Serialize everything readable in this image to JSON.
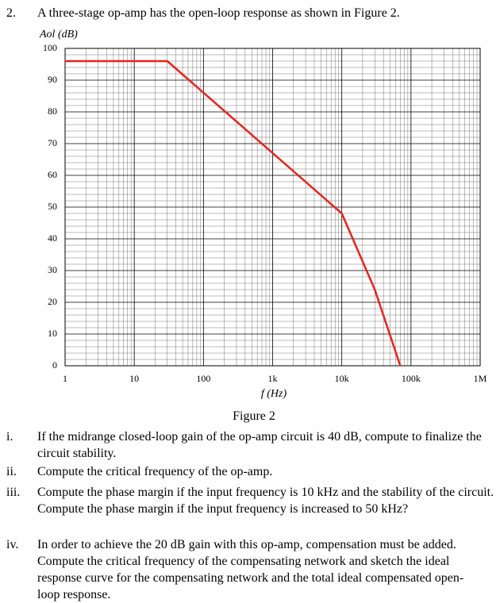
{
  "question": {
    "number": "2.",
    "text": "A three-stage op-amp has the open-loop response as shown in Figure 2."
  },
  "chart_data": {
    "type": "line",
    "ylabel": "Aol (dB)",
    "xlabel": "f (Hz)",
    "x": [
      1,
      30,
      10000,
      30000,
      70000
    ],
    "values": [
      96,
      96,
      48,
      24,
      0
    ],
    "color": "#e8231c",
    "xlog": true,
    "xlim": [
      1,
      1000000
    ],
    "xticks": [
      1,
      10,
      100,
      {
        "value": 1000,
        "label": "1k"
      },
      {
        "value": 10000,
        "label": "10k"
      },
      {
        "value": 100000,
        "label": "100k"
      },
      {
        "value": 1000000,
        "label": "1M"
      }
    ],
    "ylim": [
      0,
      100
    ],
    "yticks": [
      0,
      10,
      20,
      30,
      40,
      50,
      60,
      70,
      80,
      90,
      100
    ],
    "grid": true
  },
  "figure_caption": "Figure 2",
  "items": [
    {
      "label": "i.",
      "text": "If the midrange closed-loop gain of the op-amp circuit is 40 dB, compute to finalize the circuit stability."
    },
    {
      "label": "ii.",
      "text": "Compute the critical frequency of the op-amp."
    },
    {
      "label": "iii.",
      "text": "Compute the phase margin if the input frequency is 10 kHz and the stability of the circuit. Compute the phase margin if the input frequency is increased to 50 kHz?"
    },
    {
      "label": "iv.",
      "text": "In order to achieve the 20 dB gain with this op-amp, compensation must be added. Compute the critical frequency of the compensating network and sketch the ideal response curve for the compensating network and the total ideal compensated open-loop response."
    }
  ]
}
